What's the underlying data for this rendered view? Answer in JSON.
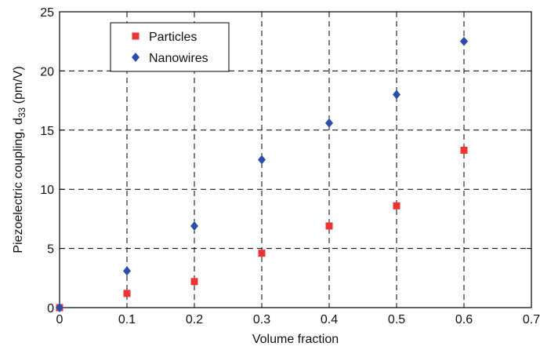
{
  "chart_data": {
    "type": "scatter",
    "xlabel": "Volume fraction",
    "ylabel": "Piezoelectric coupling, d",
    "ylabel_sub": "33",
    "ylabel_unit": " (pm/V)",
    "xlim": [
      0,
      0.7
    ],
    "ylim": [
      0,
      25
    ],
    "xticks": [
      0,
      0.1,
      0.2,
      0.3,
      0.4,
      0.5,
      0.6,
      0.7
    ],
    "xtick_labels": [
      "0",
      "0.1",
      "0.2",
      "0.3",
      "0.4",
      "0.5",
      "0.6",
      "0.7"
    ],
    "yticks": [
      0,
      5,
      10,
      15,
      20,
      25
    ],
    "ytick_labels": [
      "0",
      "5",
      "10",
      "15",
      "20",
      "25"
    ],
    "grid": true,
    "legend_position": "top-left",
    "series": [
      {
        "name": "Particles",
        "marker": "square",
        "color": "#ee3333",
        "x": [
          0,
          0.1,
          0.2,
          0.3,
          0.4,
          0.5,
          0.6
        ],
        "y": [
          0,
          1.2,
          2.2,
          4.6,
          6.9,
          8.6,
          13.3
        ]
      },
      {
        "name": "Nanowires",
        "marker": "diamond",
        "color": "#2b4fa8",
        "x": [
          0,
          0.1,
          0.2,
          0.3,
          0.4,
          0.5,
          0.6
        ],
        "y": [
          0,
          3.1,
          6.9,
          12.5,
          15.6,
          18.0,
          22.5
        ]
      }
    ]
  }
}
